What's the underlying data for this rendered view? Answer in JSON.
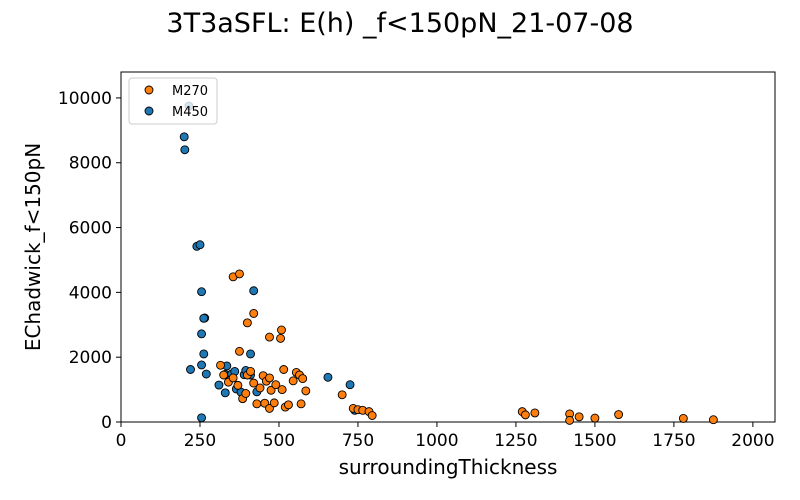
{
  "chart_data": {
    "type": "scatter",
    "title": "3T3aSFL: E(h) _f<150pN_21-07-08",
    "xlabel": "surroundingThickness",
    "ylabel": "EChadwick_f<150pN",
    "xlim": [
      0,
      2070
    ],
    "ylim": [
      0,
      10800
    ],
    "xticks": [
      0,
      250,
      500,
      750,
      1000,
      1250,
      1500,
      1750,
      2000
    ],
    "yticks": [
      0,
      2000,
      4000,
      6000,
      8000,
      10000
    ],
    "grid": false,
    "legend_position": "top-left",
    "series": [
      {
        "name": "M270",
        "color": "#ff7f0e",
        "points": [
          [
            355,
            4480
          ],
          [
            375,
            4570
          ],
          [
            400,
            3060
          ],
          [
            420,
            3350
          ],
          [
            470,
            2620
          ],
          [
            505,
            2580
          ],
          [
            508,
            2840
          ],
          [
            375,
            2180
          ],
          [
            315,
            1750
          ],
          [
            325,
            1450
          ],
          [
            340,
            1230
          ],
          [
            355,
            1360
          ],
          [
            370,
            1130
          ],
          [
            385,
            720
          ],
          [
            395,
            880
          ],
          [
            400,
            1450
          ],
          [
            410,
            1560
          ],
          [
            420,
            1200
          ],
          [
            440,
            1050
          ],
          [
            450,
            1430
          ],
          [
            460,
            1260
          ],
          [
            470,
            1360
          ],
          [
            475,
            980
          ],
          [
            490,
            1150
          ],
          [
            510,
            1000
          ],
          [
            515,
            1620
          ],
          [
            545,
            1270
          ],
          [
            555,
            1530
          ],
          [
            565,
            1450
          ],
          [
            575,
            1340
          ],
          [
            585,
            960
          ],
          [
            430,
            560
          ],
          [
            455,
            580
          ],
          [
            470,
            420
          ],
          [
            485,
            590
          ],
          [
            520,
            460
          ],
          [
            530,
            530
          ],
          [
            570,
            560
          ],
          [
            700,
            840
          ],
          [
            735,
            420
          ],
          [
            750,
            380
          ],
          [
            765,
            360
          ],
          [
            785,
            320
          ],
          [
            795,
            200
          ],
          [
            1270,
            320
          ],
          [
            1280,
            220
          ],
          [
            1310,
            280
          ],
          [
            1420,
            250
          ],
          [
            1420,
            50
          ],
          [
            1450,
            160
          ],
          [
            1500,
            120
          ],
          [
            1575,
            230
          ],
          [
            1780,
            110
          ],
          [
            1875,
            70
          ]
        ]
      },
      {
        "name": "M450",
        "color": "#1f77b4",
        "points": [
          [
            215,
            9750
          ],
          [
            200,
            8800
          ],
          [
            202,
            8400
          ],
          [
            240,
            5420
          ],
          [
            250,
            5470
          ],
          [
            255,
            4020
          ],
          [
            265,
            3210
          ],
          [
            262,
            3200
          ],
          [
            255,
            2720
          ],
          [
            262,
            2100
          ],
          [
            420,
            4050
          ],
          [
            410,
            2100
          ],
          [
            220,
            1620
          ],
          [
            255,
            1760
          ],
          [
            270,
            1480
          ],
          [
            310,
            1140
          ],
          [
            330,
            1470
          ],
          [
            335,
            1730
          ],
          [
            330,
            900
          ],
          [
            350,
            1480
          ],
          [
            360,
            1560
          ],
          [
            365,
            1020
          ],
          [
            380,
            920
          ],
          [
            390,
            1460
          ],
          [
            395,
            1590
          ],
          [
            410,
            1450
          ],
          [
            430,
            930
          ],
          [
            655,
            1380
          ],
          [
            725,
            1150
          ],
          [
            740,
            360
          ],
          [
            255,
            130
          ]
        ]
      }
    ]
  }
}
